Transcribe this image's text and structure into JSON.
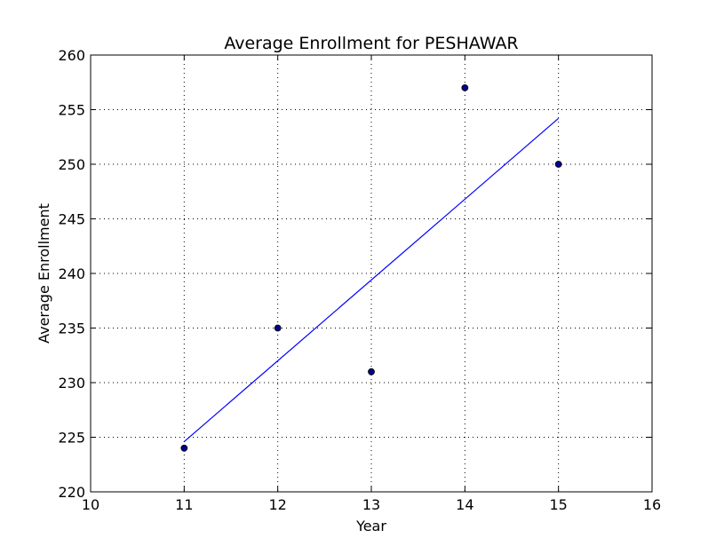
{
  "chart_data": {
    "type": "scatter",
    "title": "Average Enrollment for PESHAWAR",
    "xlabel": "Year",
    "ylabel": "Average Enrollment",
    "xlim": [
      10,
      16
    ],
    "ylim": [
      220,
      260
    ],
    "xticks": [
      10,
      11,
      12,
      13,
      14,
      15,
      16
    ],
    "yticks": [
      220,
      225,
      230,
      235,
      240,
      245,
      250,
      255,
      260
    ],
    "grid": true,
    "series": [
      {
        "type": "scatter",
        "x": [
          11,
          12,
          13,
          14,
          15
        ],
        "y": [
          224,
          235,
          231,
          257,
          250
        ],
        "color": "#00008b"
      },
      {
        "type": "line",
        "x": [
          11,
          15
        ],
        "y": [
          224.6,
          254.2
        ],
        "color": "#0000ff"
      }
    ]
  }
}
